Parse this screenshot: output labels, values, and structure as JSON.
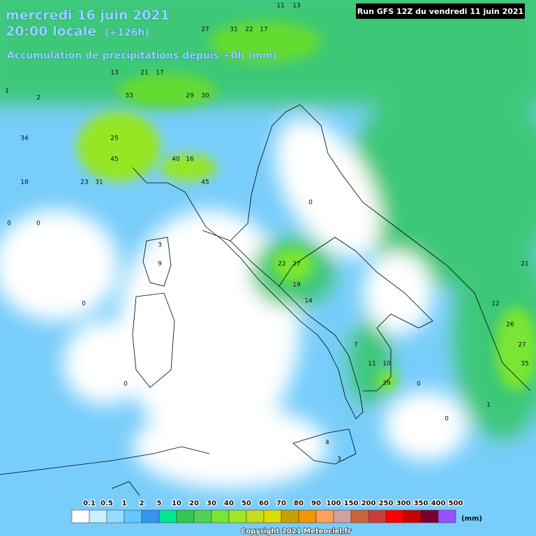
{
  "header": {
    "date": "mercredi 16 juin 2021",
    "time": "20:00 locale",
    "lead": "(+126h)",
    "subtitle": "Accumulation de précipitations depuis +0h (mm)",
    "run": "Run GFS 12Z du vendredi 11 juin 2021"
  },
  "map_values": [
    45,
    40,
    45,
    34,
    33,
    27,
    22,
    39,
    35,
    27,
    26,
    21,
    18,
    23,
    31,
    25,
    29,
    30,
    27,
    31,
    22,
    17,
    14,
    19,
    13,
    21,
    17,
    11,
    13,
    16,
    9,
    3,
    4,
    3,
    11,
    10,
    7,
    12,
    0,
    0,
    0,
    0,
    0,
    0,
    1,
    1,
    2,
    0
  ],
  "legend": {
    "labels": [
      0.1,
      0.5,
      1,
      2,
      5,
      10,
      20,
      30,
      40,
      50,
      60,
      70,
      80,
      90,
      100,
      150,
      200,
      250,
      300,
      350,
      400,
      500
    ],
    "colors": [
      "#ffffff",
      "#c8f0ff",
      "#96dcff",
      "#64c8ff",
      "#3296f0",
      "#00e696",
      "#32c850",
      "#50d250",
      "#78e632",
      "#a0e628",
      "#c8dc1e",
      "#dcdc00",
      "#c8a000",
      "#f09600",
      "#ffa05a",
      "#d2a0a0",
      "#c8643c",
      "#c83c3c",
      "#ff0000",
      "#c80000",
      "#780030",
      "#9650ff"
    ],
    "unit": "(mm)"
  },
  "footer": "Copyright 2021 Meteociel.fr"
}
